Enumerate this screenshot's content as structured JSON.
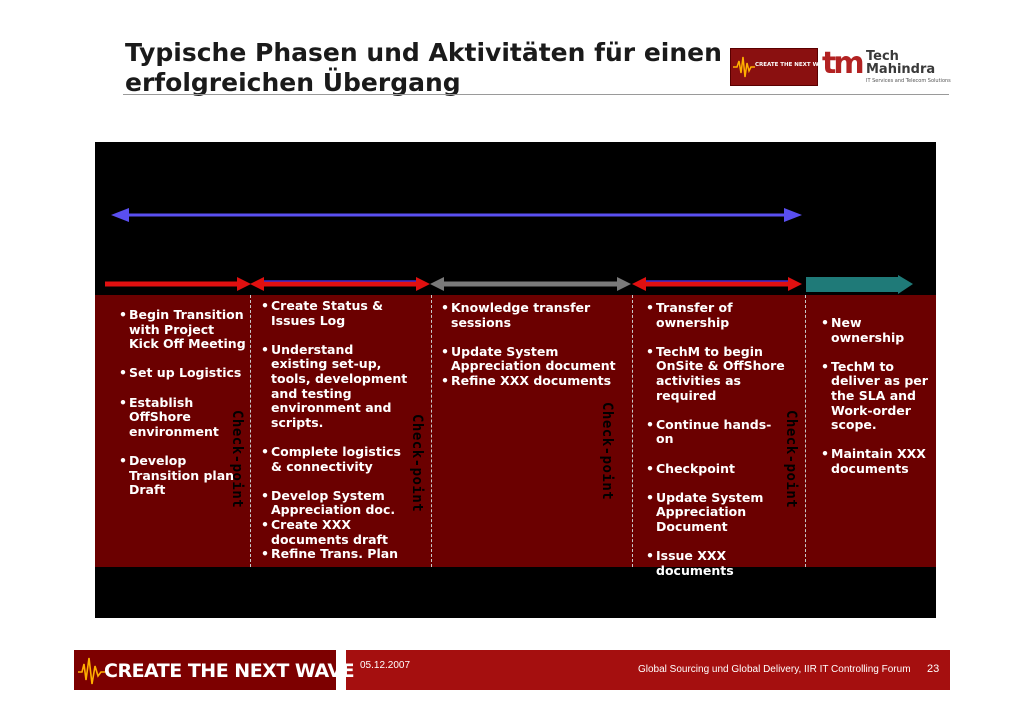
{
  "title": "Typische Phasen und Aktivitäten für einen erfolgreichen Übergang",
  "logos": {
    "create_wave": "CREATE THE NEXT WAVE",
    "techm_mark": "tm",
    "techm_name_1": "Tech",
    "techm_name_2": "Mahindra",
    "techm_tagline": "IT Services and Telecom Solutions"
  },
  "colors": {
    "panel": "#000000",
    "content_band": "#6b0000",
    "overall_arrow": "#5a4ff0",
    "phase_arrow_red": "#e01010",
    "phase_arrow_gray": "#7a7a7a",
    "phase_arrow_teal": "#1f7a78",
    "footer": "#a50f0f"
  },
  "checkpoint_label": "Check-point",
  "columns": [
    {
      "items": [
        "Begin Transition with Project Kick Off Meeting",
        "Set up Logistics",
        "Establish OffShore environment",
        "Develop Transition plan Draft"
      ]
    },
    {
      "items": [
        "Create Status & Issues Log",
        "Understand existing set-up, tools, development and testing environment and scripts.",
        "Complete logistics & connectivity",
        "Develop System Appreciation doc.",
        "Create XXX documents draft",
        "Refine Trans. Plan"
      ]
    },
    {
      "items": [
        "Knowledge transfer sessions",
        "Update System Appreciation document",
        "Refine XXX documents"
      ]
    },
    {
      "items": [
        "Transfer of ownership",
        "TechM to begin OnSite & OffShore activities as required",
        "Continue hands-on",
        "Checkpoint",
        "Update System Appreciation Document",
        "Issue XXX documents"
      ]
    },
    {
      "items": [
        "New ownership",
        "TechM to deliver as per the SLA and Work-order scope.",
        "Maintain XXX documents"
      ]
    }
  ],
  "footer": {
    "brand": "CREATE THE NEXT WAVE",
    "date": "05.12.2007",
    "event": "Global Sourcing und Global Delivery, IIR IT Controlling Forum",
    "page": "23"
  }
}
